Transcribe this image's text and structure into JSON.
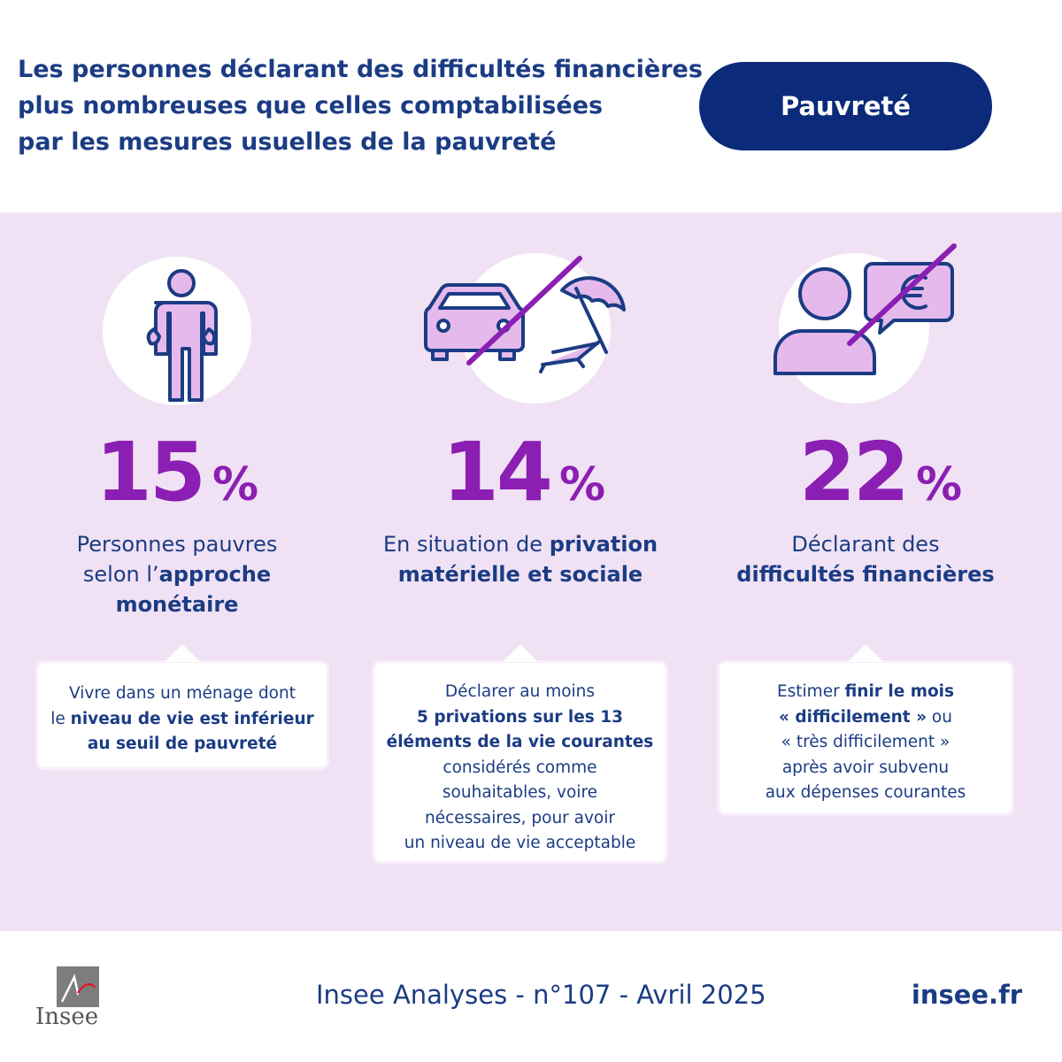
{
  "header": {
    "title_lines": [
      "Les personnes déclarant des difficultés financières",
      "plus nombreuses que celles comptabilisées",
      "par les mesures usuelles de la pauvreté"
    ],
    "tag": "Pauvreté"
  },
  "columns": [
    {
      "icon": "person-empty-pockets-icon",
      "value": "15",
      "unit": "%",
      "label": {
        "l1": "Personnes pauvres",
        "l2_pre": "selon l’",
        "l2_bold": "approche",
        "l3_bold": "monétaire"
      },
      "callout": {
        "l1": "Vivre dans un ménage dont",
        "l2_pre": "le ",
        "l2_bold": "niveau de vie est inférieur",
        "l3_bold": "au seuil de pauvreté"
      }
    },
    {
      "icon": "car-beach-umbrella-crossed-icon",
      "value": "14",
      "unit": "%",
      "label": {
        "l1_pre": "En situation de ",
        "l1_bold": "privation",
        "l2_bold": "matérielle et sociale"
      },
      "callout": {
        "l1": "Déclarer au moins",
        "l2_bold": "5 privations sur les 13",
        "l3_bold": "éléments de la vie courantes",
        "l4": "considérés comme",
        "l5": "souhaitables, voire",
        "l6": "nécessaires, pour avoir",
        "l7": "un niveau de vie acceptable"
      }
    },
    {
      "icon": "person-euro-bubble-crossed-icon",
      "value": "22",
      "unit": "%",
      "label": {
        "l1": "Déclarant des",
        "l2_bold": "difficultés financières"
      },
      "callout": {
        "l1_pre": "Estimer ",
        "l1_bold": "finir le mois",
        "l2_bold": "« difficilement »",
        "l2_post": " ou",
        "l3": "« très difficilement »",
        "l4": "après avoir subvenu",
        "l5": "aux dépenses courantes"
      }
    }
  ],
  "footer": {
    "logo_text": "Insee",
    "publication": "Insee Analyses - n°107 - Avril 2025",
    "site": "insee.fr"
  },
  "colors": {
    "navy": "#1b3c84",
    "pill": "#0b2a7a",
    "purple": "#8b1fb3",
    "band": "#f0e2f4",
    "icon_fill": "#e5b9ec"
  }
}
